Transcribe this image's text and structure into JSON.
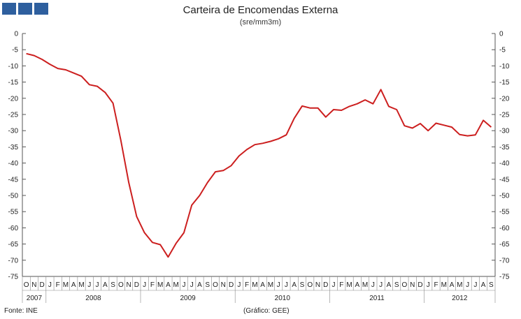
{
  "header": {
    "title": "Carteira de Encomendas  Externa",
    "subtitle": "(sre/mm3m)"
  },
  "footer": {
    "source": "Fonte: INE",
    "credit": "(Gráfico: GEE)"
  },
  "colors": {
    "line": "#cc1f1f",
    "axis": "#555555",
    "logo": "#2e5f9e"
  },
  "chart_data": {
    "type": "line",
    "title": "Carteira de Encomendas  Externa",
    "subtitle": "(sre/mm3m)",
    "ylim": [
      -75,
      0
    ],
    "yticks": [
      0,
      -5,
      -10,
      -15,
      -20,
      -25,
      -30,
      -35,
      -40,
      -45,
      -50,
      -55,
      -60,
      -65,
      -70,
      -75
    ],
    "grid": false,
    "axes": "left-and-right",
    "months": [
      "O",
      "N",
      "D",
      "J",
      "F",
      "M",
      "A",
      "M",
      "J",
      "J",
      "A",
      "S",
      "O",
      "N",
      "D",
      "J",
      "F",
      "M",
      "A",
      "M",
      "J",
      "J",
      "A",
      "S",
      "O",
      "N",
      "D",
      "J",
      "F",
      "M",
      "A",
      "M",
      "J",
      "J",
      "A",
      "S",
      "O",
      "N",
      "D",
      "J",
      "F",
      "M",
      "A",
      "M",
      "J",
      "J",
      "A",
      "S",
      "O",
      "N",
      "D",
      "J",
      "F",
      "M",
      "A",
      "M",
      "J",
      "J",
      "A",
      "S"
    ],
    "years": [
      {
        "label": "2007",
        "start": 0,
        "end": 3
      },
      {
        "label": "2008",
        "start": 3,
        "end": 15
      },
      {
        "label": "2009",
        "start": 15,
        "end": 27
      },
      {
        "label": "2010",
        "start": 27,
        "end": 39
      },
      {
        "label": "2011",
        "start": 39,
        "end": 51
      },
      {
        "label": "2012",
        "start": 51,
        "end": 60
      }
    ],
    "series": [
      {
        "values": [
          -6.2,
          -6.8,
          -8.0,
          -9.5,
          -10.8,
          -11.2,
          -12.2,
          -13.2,
          -15.8,
          -16.3,
          -18.2,
          -21.5,
          -33,
          -46,
          -56.5,
          -61.5,
          -64.5,
          -65.2,
          -69.0,
          -64.8,
          -61.5,
          -53.0,
          -50.0,
          -46.0,
          -42.7,
          -42.3,
          -40.8,
          -37.8,
          -35.8,
          -34.3,
          -33.9,
          -33.3,
          -32.5,
          -31.3,
          -26.2,
          -22.4,
          -23.0,
          -23.0,
          -25.8,
          -23.5,
          -23.7,
          -22.5,
          -21.7,
          -20.5,
          -21.7,
          -17.3,
          -22.5,
          -23.5,
          -28.5,
          -29.2,
          -27.8,
          -30.0,
          -27.7,
          -28.3,
          -28.9,
          -31.2,
          -31.6,
          -31.3,
          -26.8,
          -28.9
        ]
      }
    ]
  }
}
